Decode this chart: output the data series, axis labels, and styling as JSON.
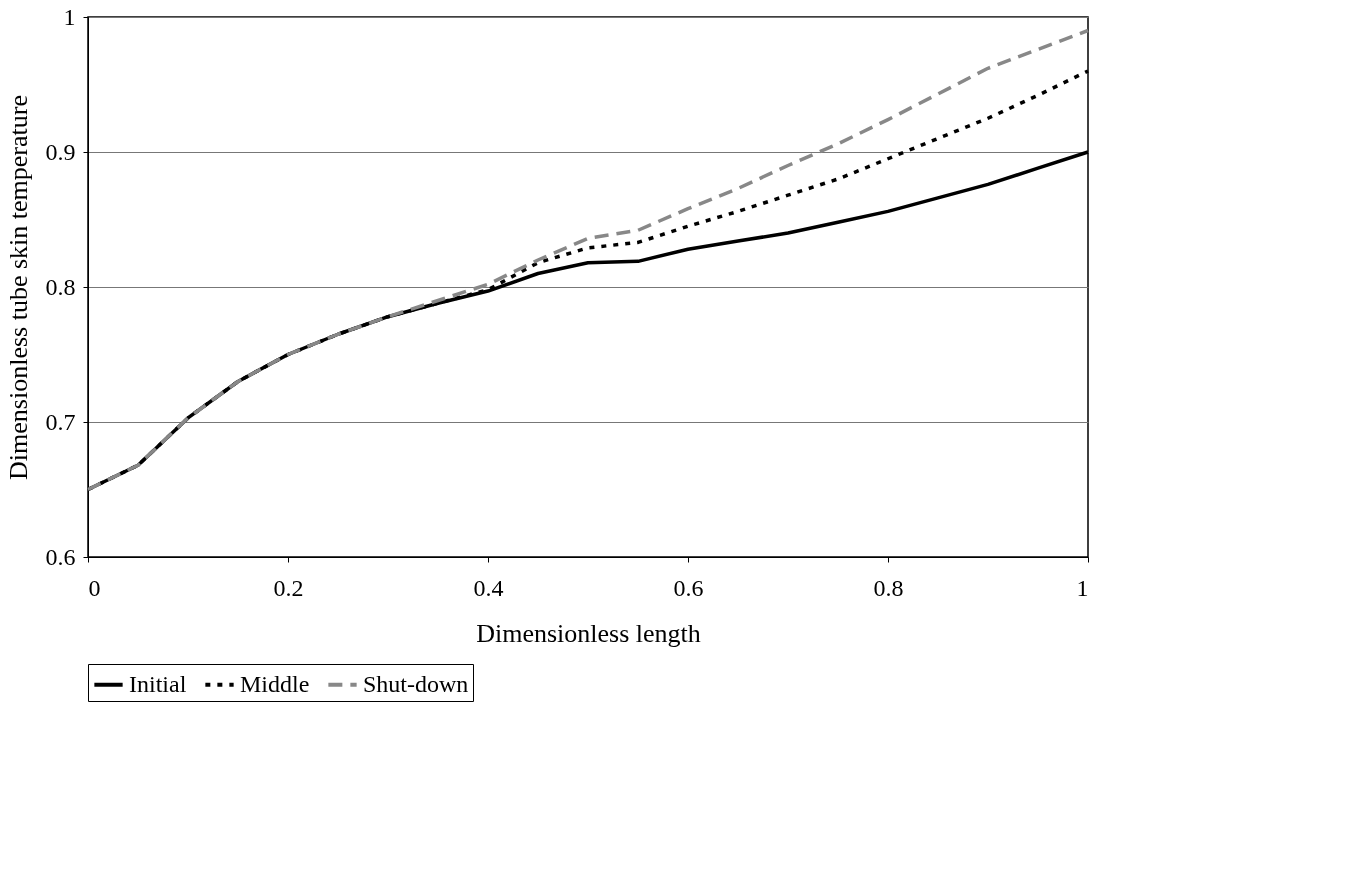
{
  "chart_data": {
    "type": "line",
    "xlabel": "Dimensionless length",
    "ylabel": "Dimensionless tube skin temperature",
    "x": [
      0,
      0.05,
      0.1,
      0.15,
      0.2,
      0.25,
      0.3,
      0.35,
      0.4,
      0.45,
      0.5,
      0.55,
      0.6,
      0.65,
      0.7,
      0.75,
      0.8,
      0.85,
      0.9,
      0.95,
      1.0
    ],
    "series": [
      {
        "name": "Initial",
        "color": "#000000",
        "line_style": "solid",
        "values": [
          0.65,
          0.668,
          0.703,
          0.73,
          0.75,
          0.765,
          0.778,
          0.788,
          0.797,
          0.81,
          0.818,
          0.819,
          0.828,
          0.834,
          0.84,
          0.848,
          0.856,
          0.866,
          0.876,
          0.888,
          0.9
        ]
      },
      {
        "name": "Middle",
        "color": "#000000",
        "line_style": "dotted",
        "values": [
          0.65,
          0.668,
          0.703,
          0.73,
          0.75,
          0.765,
          0.778,
          0.788,
          0.798,
          0.818,
          0.829,
          0.833,
          0.845,
          0.856,
          0.868,
          0.88,
          0.895,
          0.91,
          0.925,
          0.942,
          0.96
        ]
      },
      {
        "name": "Shut-down",
        "color": "#888888",
        "line_style": "dashed",
        "values": [
          0.65,
          0.668,
          0.703,
          0.73,
          0.75,
          0.765,
          0.778,
          0.79,
          0.802,
          0.82,
          0.836,
          0.842,
          0.858,
          0.873,
          0.89,
          0.906,
          0.924,
          0.943,
          0.962,
          0.976,
          0.99
        ]
      }
    ],
    "xlim": [
      0,
      1
    ],
    "xticks": [
      0,
      0.2,
      0.4,
      0.6,
      0.8,
      1
    ],
    "ylim": [
      0.6,
      1
    ],
    "yticks": [
      0.6,
      0.7,
      0.8,
      0.9,
      1
    ],
    "grid": "y",
    "legend": "bottom",
    "marker": "none"
  }
}
